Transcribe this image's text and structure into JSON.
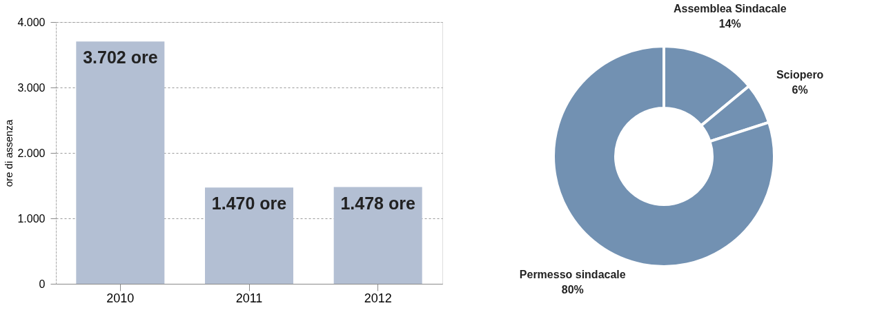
{
  "chart_data": [
    {
      "type": "bar",
      "ylabel": "ore di assenza",
      "categories": [
        "2010",
        "2011",
        "2012"
      ],
      "values": [
        3702,
        1470,
        1478
      ],
      "color": "#b3bfd3",
      "value_labels": [
        "3.702 ore",
        "1.470 ore",
        "1.478 ore"
      ],
      "ylim": [
        0,
        4000
      ],
      "yticks": [
        {
          "value": 0,
          "label": "0"
        },
        {
          "value": 1000,
          "label": "1.000"
        },
        {
          "value": 2000,
          "label": "2.000"
        },
        {
          "value": 3000,
          "label": "3.000"
        },
        {
          "value": 4000,
          "label": "4.000"
        }
      ],
      "grid": "y"
    },
    {
      "type": "donut",
      "categories": [
        "Assemblea Sindacale",
        "Sciopero",
        "Permesso sindacale"
      ],
      "values": [
        14,
        6,
        80
      ],
      "colors": [
        "#7291b2",
        "#7291b2",
        "#7291b2"
      ],
      "value_labels": [
        "14%",
        "6%",
        "80%"
      ],
      "legend": false
    }
  ]
}
